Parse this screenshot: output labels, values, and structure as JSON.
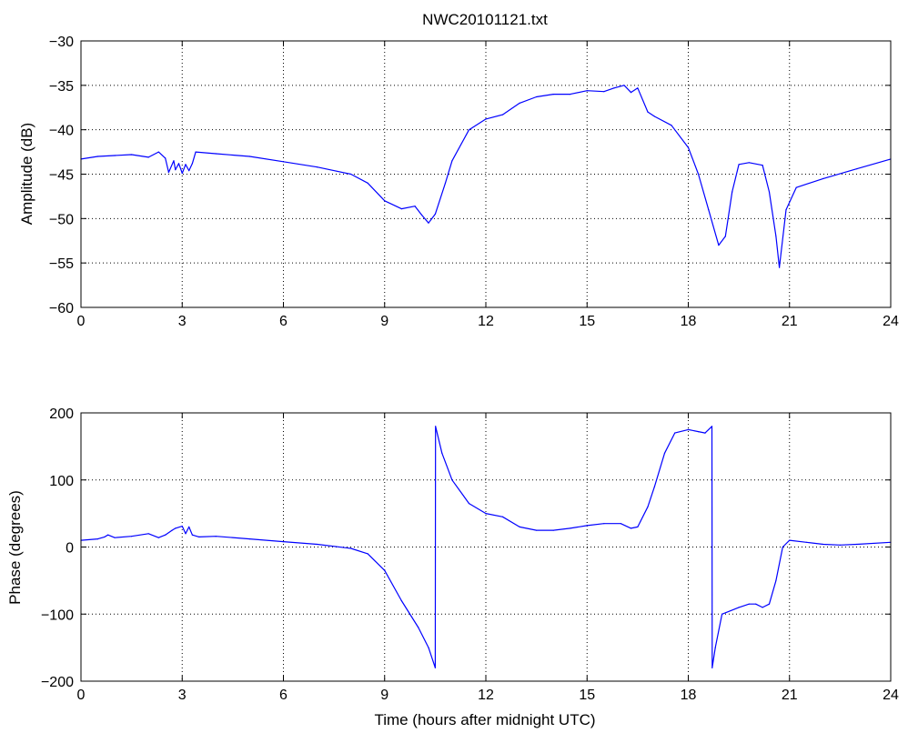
{
  "chart_data": [
    {
      "type": "line",
      "title": "NWC20101121.txt",
      "xlabel": "",
      "ylabel": "Amplitude (dB)",
      "xlim": [
        0,
        24
      ],
      "ylim": [
        -60,
        -30
      ],
      "xticks": [
        "0",
        "3",
        "6",
        "9",
        "12",
        "15",
        "18",
        "21",
        "24"
      ],
      "yticks": [
        "−30",
        "−35",
        "−40",
        "−45",
        "−50",
        "−55",
        "−60"
      ],
      "grid": true,
      "color": "#0000ff",
      "series": [
        {
          "x": [
            0,
            0.5,
            1.0,
            1.5,
            2.0,
            2.3,
            2.5,
            2.6,
            2.75,
            2.8,
            2.9,
            3.0,
            3.1,
            3.2,
            3.3,
            3.4,
            4.0,
            5.0,
            6.0,
            7.0,
            8.0,
            8.5,
            9.0,
            9.5,
            9.9,
            10.1,
            10.3,
            10.5,
            10.8,
            11.0,
            11.5,
            12.0,
            12.5,
            13.0,
            13.5,
            14.0,
            14.5,
            15.0,
            15.5,
            15.8,
            16.1,
            16.3,
            16.5,
            16.8,
            17.0,
            17.5,
            18.0,
            18.3,
            18.6,
            18.9,
            19.1,
            19.3,
            19.5,
            19.8,
            20.2,
            20.4,
            20.6,
            20.7,
            20.9,
            21.2,
            22.0,
            23.0,
            24.0
          ],
          "y": [
            -43.3,
            -43.0,
            -42.9,
            -42.8,
            -43.1,
            -42.5,
            -43.2,
            -44.8,
            -43.5,
            -44.5,
            -43.8,
            -44.9,
            -43.9,
            -44.6,
            -43.8,
            -42.5,
            -42.7,
            -43.0,
            -43.6,
            -44.2,
            -45.0,
            -46.0,
            -48.0,
            -48.9,
            -48.6,
            -49.6,
            -50.5,
            -49.5,
            -46.0,
            -43.5,
            -40.0,
            -38.8,
            -38.3,
            -37.0,
            -36.3,
            -36.0,
            -36.0,
            -35.6,
            -35.7,
            -35.3,
            -35.0,
            -35.8,
            -35.3,
            -38.0,
            -38.5,
            -39.5,
            -42.0,
            -45.0,
            -49.0,
            -53.0,
            -52.0,
            -47.0,
            -43.9,
            -43.7,
            -44.0,
            -47.0,
            -52.0,
            -55.5,
            -49.0,
            -46.5,
            -45.5,
            -44.4,
            -43.3
          ]
        }
      ]
    },
    {
      "type": "line",
      "title": "",
      "xlabel": "Time (hours after midnight UTC)",
      "ylabel": "Phase (degrees)",
      "xlim": [
        0,
        24
      ],
      "ylim": [
        -200,
        200
      ],
      "xticks": [
        "0",
        "3",
        "6",
        "9",
        "12",
        "15",
        "18",
        "21",
        "24"
      ],
      "yticks": [
        "200",
        "100",
        "0",
        "−100",
        "−200"
      ],
      "grid": true,
      "color": "#0000ff",
      "series": [
        {
          "x": [
            0,
            0.5,
            0.7,
            0.8,
            1.0,
            1.5,
            2.0,
            2.3,
            2.5,
            2.7,
            2.8,
            3.0,
            3.1,
            3.2,
            3.3,
            3.5,
            4.0,
            5.0,
            6.0,
            7.0,
            8.0,
            8.5,
            9.0,
            9.5,
            10.0,
            10.3,
            10.5,
            10.51,
            10.7,
            11.0,
            11.5,
            12.0,
            12.5,
            13.0,
            13.5,
            14.0,
            14.5,
            15.0,
            15.5,
            16.0,
            16.3,
            16.5,
            16.8,
            17.0,
            17.3,
            17.6,
            18.0,
            18.3,
            18.5,
            18.7,
            18.71,
            18.8,
            19.0,
            19.5,
            19.8,
            20.0,
            20.2,
            20.4,
            20.6,
            20.8,
            21.0,
            21.5,
            22.0,
            22.5,
            23.0,
            24.0
          ],
          "y": [
            10,
            12,
            15,
            18,
            14,
            16,
            20,
            14,
            18,
            25,
            28,
            31,
            20,
            30,
            18,
            15,
            16,
            12,
            8,
            4,
            -2,
            -10,
            -35,
            -80,
            -120,
            -150,
            -180,
            180,
            140,
            100,
            65,
            50,
            45,
            30,
            25,
            25,
            28,
            32,
            35,
            35,
            28,
            30,
            60,
            90,
            140,
            170,
            175,
            172,
            170,
            180,
            -180,
            -150,
            -100,
            -90,
            -85,
            -85,
            -90,
            -85,
            -50,
            0,
            10,
            7,
            4,
            3,
            4,
            7
          ]
        }
      ]
    }
  ]
}
